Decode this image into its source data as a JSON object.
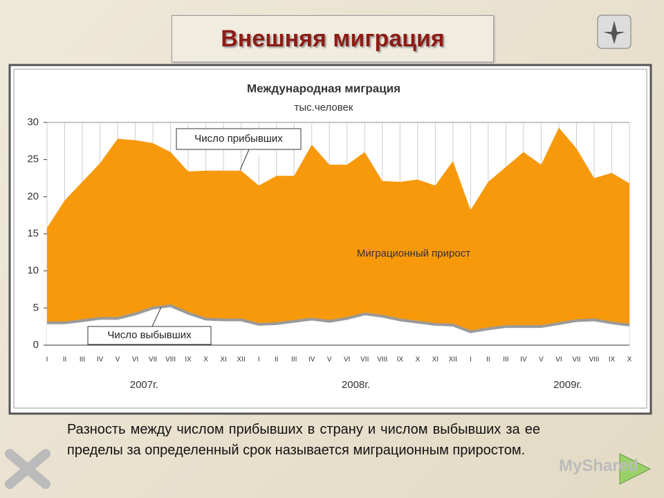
{
  "slide_title": "Внешняя миграция",
  "body_text": "Разность между числом прибывших в страну и числом выбывших за ее пределы за определенный срок называется миграционным приростом.",
  "watermark": "MyShared",
  "chart_data": {
    "type": "area",
    "title": "Международная миграция",
    "subtitle": "тыс.человек",
    "categories": [
      "I",
      "II",
      "III",
      "IV",
      "V",
      "VI",
      "VII",
      "VIII",
      "IX",
      "X",
      "XI",
      "XII",
      "I",
      "II",
      "III",
      "IV",
      "V",
      "VI",
      "VII",
      "VIII",
      "IX",
      "X",
      "XI",
      "XII",
      "I",
      "II",
      "III",
      "IV",
      "V",
      "VI",
      "VII",
      "VIII",
      "IX",
      "X"
    ],
    "year_labels": [
      "2007г.",
      "2008г.",
      "2009г."
    ],
    "series": [
      {
        "name": "Число прибывших",
        "color": "#f7990a",
        "values": [
          15.8,
          19.5,
          22,
          24.5,
          27.8,
          27.6,
          27.2,
          26,
          23.4,
          23.5,
          23.5,
          23.5,
          21.5,
          22.8,
          22.8,
          27,
          24.3,
          24.3,
          26,
          22.1,
          22,
          22.3,
          21.5,
          24.8,
          18.2,
          22,
          24,
          26,
          24.3,
          29.3,
          26.5,
          22.5,
          23.2,
          21.8
        ]
      },
      {
        "name": "Число выбывших",
        "color": "#9a9a9a",
        "values": [
          3.0,
          3.0,
          3.3,
          3.6,
          3.6,
          4.2,
          5.0,
          5.3,
          4.3,
          3.5,
          3.4,
          3.4,
          2.8,
          2.9,
          3.2,
          3.5,
          3.2,
          3.6,
          4.2,
          3.9,
          3.4,
          3.1,
          2.8,
          2.7,
          1.8,
          2.2,
          2.5,
          2.5,
          2.5,
          2.9,
          3.3,
          3.4,
          3.0,
          2.7
        ]
      }
    ],
    "annotation": "Миграционный прирост",
    "ylim": [
      0,
      30
    ],
    "yticks": [
      0,
      5,
      10,
      15,
      20,
      25,
      30
    ],
    "grid": true
  }
}
